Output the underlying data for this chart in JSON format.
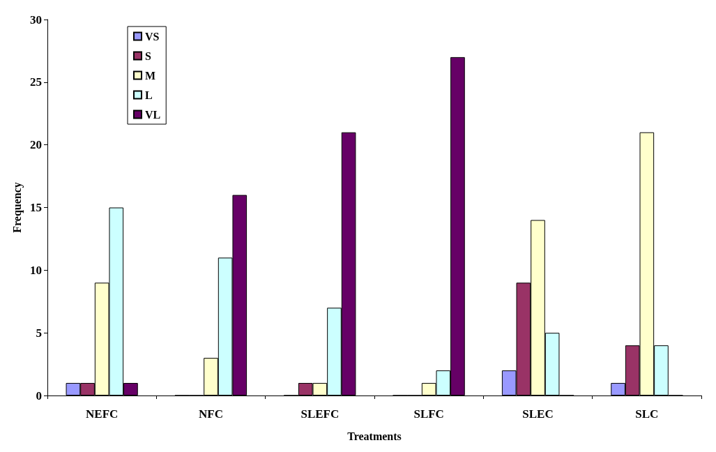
{
  "chart_data": {
    "type": "bar",
    "xlabel": "Treatments",
    "ylabel": "Frequency",
    "categories": [
      "NEFC",
      "NFC",
      "SLEFC",
      "SLFC",
      "SLEC",
      "SLC"
    ],
    "series": [
      {
        "name": "VS",
        "color": "#9999ff",
        "values": [
          1,
          0,
          0,
          0,
          2,
          1
        ]
      },
      {
        "name": "S",
        "color": "#993366",
        "values": [
          1,
          0,
          1,
          0,
          9,
          4
        ]
      },
      {
        "name": "M",
        "color": "#ffffcc",
        "values": [
          9,
          3,
          1,
          1,
          14,
          21
        ]
      },
      {
        "name": "L",
        "color": "#ccffff",
        "values": [
          15,
          11,
          7,
          2,
          5,
          4
        ]
      },
      {
        "name": "VL",
        "color": "#660066",
        "values": [
          1,
          16,
          21,
          27,
          0,
          0
        ]
      }
    ],
    "ylim": [
      0,
      30
    ],
    "yticks": [
      0,
      5,
      10,
      15,
      20,
      25,
      30
    ],
    "grid": false,
    "legend": "top left"
  }
}
